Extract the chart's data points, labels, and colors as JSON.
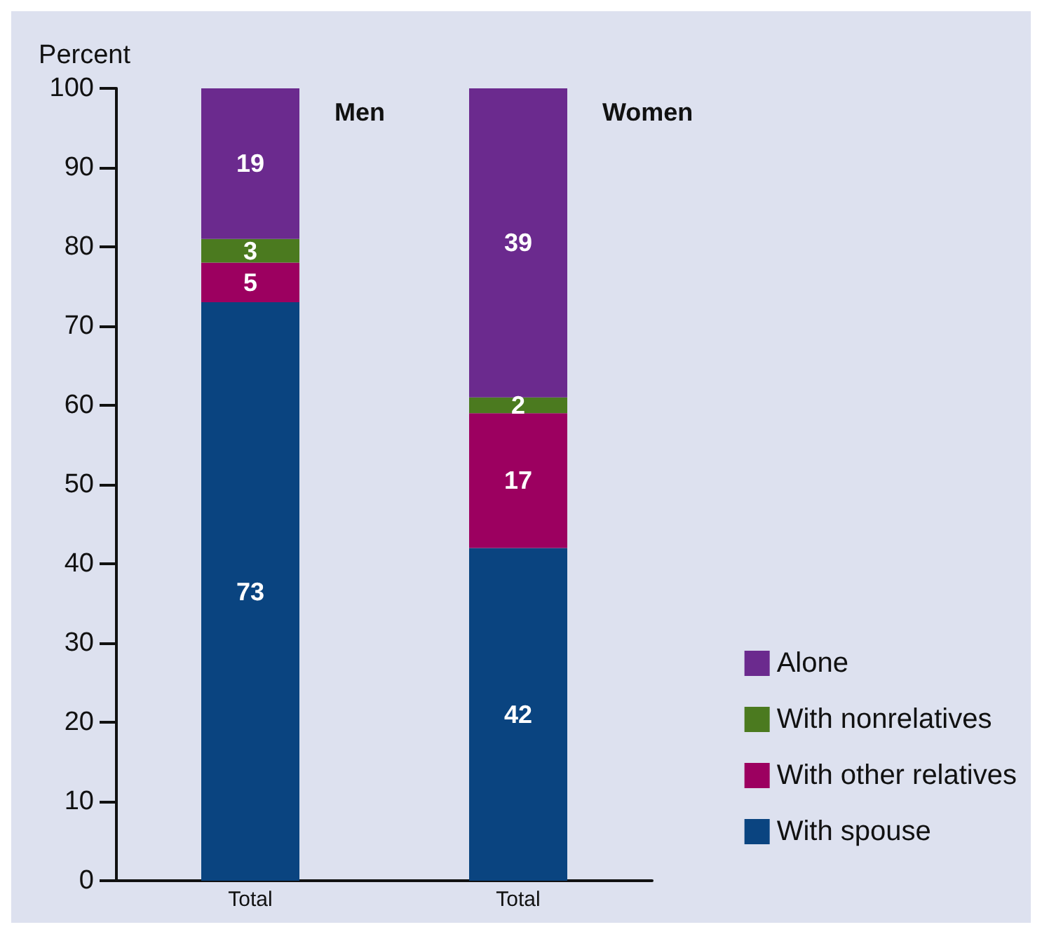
{
  "chart_data": {
    "type": "bar",
    "stacked": true,
    "ylabel": "Percent",
    "categories": [
      "Total",
      "Total"
    ],
    "series": [
      {
        "name": "With spouse",
        "color": "#0a4480",
        "values": [
          73,
          42
        ]
      },
      {
        "name": "With other relatives",
        "color": "#9c0060",
        "values": [
          5,
          17
        ]
      },
      {
        "name": "With nonrelatives",
        "color": "#4b7a1f",
        "values": [
          3,
          2
        ]
      },
      {
        "name": "Alone",
        "color": "#6b2a8e",
        "values": [
          19,
          39
        ]
      }
    ],
    "annotations": [
      "Men",
      "Women"
    ],
    "ylim": [
      0,
      100
    ],
    "yticks": [
      0,
      10,
      20,
      30,
      40,
      50,
      60,
      70,
      80,
      90,
      100
    ],
    "grid": false,
    "legend": "bottom right",
    "data_labels": true
  }
}
